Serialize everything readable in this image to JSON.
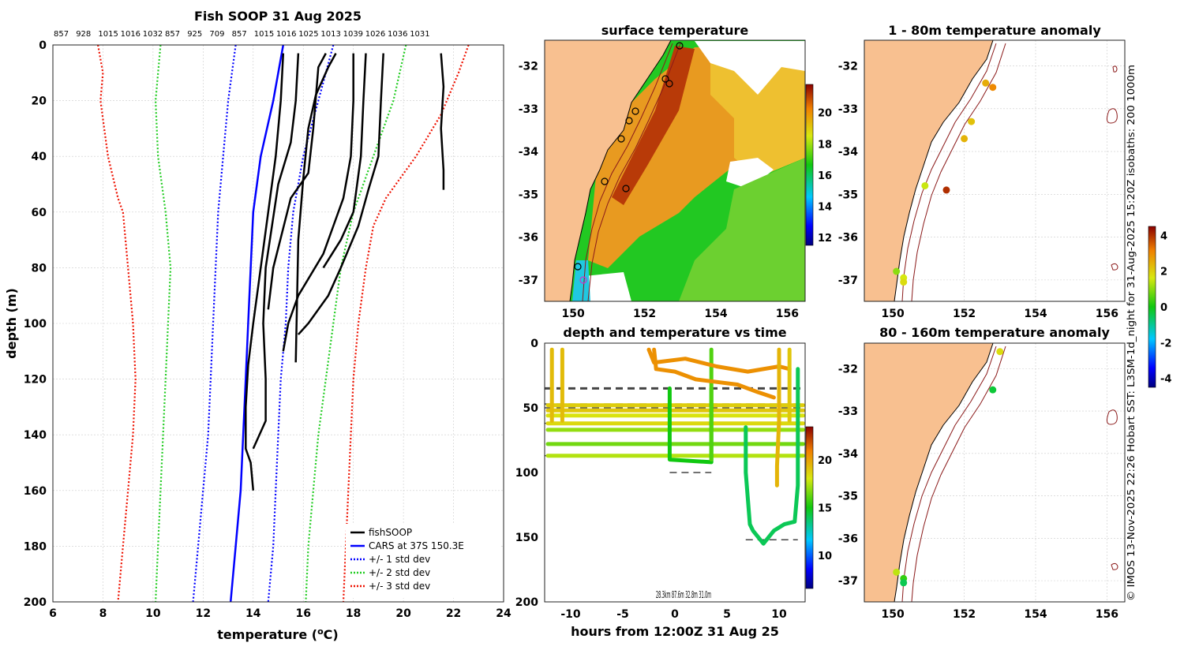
{
  "chart_data": [
    {
      "type": "line",
      "title": "Fish SOOP 31 Aug 2025",
      "xlabel": "temperature (",
      "xlabel_unit": "o",
      "xlabel_end": "C)",
      "ylabel": "depth (m)",
      "xlim": [
        6,
        24
      ],
      "ylim": [
        0,
        200
      ],
      "x_ticks": [
        6,
        8,
        10,
        12,
        14,
        16,
        18,
        20,
        22,
        24
      ],
      "y_ticks": [
        0,
        20,
        40,
        60,
        80,
        100,
        120,
        140,
        160,
        180,
        200
      ],
      "top_labels": [
        "857",
        "928",
        "1015",
        "1016",
        "1032",
        "857",
        "925",
        "709",
        "857",
        "1015",
        "1016",
        "1025",
        "1013",
        "1039",
        "1026",
        "1036",
        "1031"
      ],
      "legend": [
        {
          "label": "fishSOOP",
          "color": "#000000",
          "style": "solid"
        },
        {
          "label": "CARS at 37S 150.3E",
          "color": "#0000ff",
          "style": "solid"
        },
        {
          "label": "+/- 1 std dev",
          "color": "#0000ff",
          "style": "dotted"
        },
        {
          "label": "+/- 2 std dev",
          "color": "#22cc22",
          "style": "dotted"
        },
        {
          "label": "+/- 3 std dev",
          "color": "#ee1100",
          "style": "dotted"
        }
      ],
      "series": [
        {
          "name": "CARS",
          "color": "#0000ff",
          "style": "solid",
          "points": [
            [
              15.2,
              0
            ],
            [
              14.8,
              20
            ],
            [
              14.3,
              40
            ],
            [
              14.0,
              60
            ],
            [
              13.9,
              80
            ],
            [
              13.8,
              100
            ],
            [
              13.7,
              120
            ],
            [
              13.6,
              140
            ],
            [
              13.5,
              160
            ],
            [
              13.3,
              180
            ],
            [
              13.1,
              200
            ]
          ]
        },
        {
          "name": "-1 std",
          "color": "#0000ff",
          "style": "dotted",
          "points": [
            [
              13.3,
              0
            ],
            [
              13.0,
              20
            ],
            [
              12.8,
              40
            ],
            [
              12.6,
              60
            ],
            [
              12.5,
              80
            ],
            [
              12.4,
              100
            ],
            [
              12.3,
              120
            ],
            [
              12.2,
              140
            ],
            [
              12.0,
              160
            ],
            [
              11.8,
              180
            ],
            [
              11.6,
              200
            ]
          ]
        },
        {
          "name": "+1 std",
          "color": "#0000ff",
          "style": "dotted",
          "points": [
            [
              17.2,
              0
            ],
            [
              16.6,
              20
            ],
            [
              16.0,
              40
            ],
            [
              15.6,
              60
            ],
            [
              15.4,
              80
            ],
            [
              15.3,
              100
            ],
            [
              15.1,
              120
            ],
            [
              15.0,
              140
            ],
            [
              14.9,
              160
            ],
            [
              14.8,
              180
            ],
            [
              14.6,
              200
            ]
          ]
        },
        {
          "name": "-2 std",
          "color": "#22cc22",
          "style": "dotted",
          "points": [
            [
              10.3,
              0
            ],
            [
              10.1,
              20
            ],
            [
              10.2,
              40
            ],
            [
              10.5,
              60
            ],
            [
              10.7,
              80
            ],
            [
              10.6,
              100
            ],
            [
              10.5,
              120
            ],
            [
              10.4,
              140
            ],
            [
              10.3,
              160
            ],
            [
              10.2,
              180
            ],
            [
              10.1,
              200
            ]
          ]
        },
        {
          "name": "+2 std",
          "color": "#22cc22",
          "style": "dotted",
          "points": [
            [
              20.1,
              0
            ],
            [
              19.6,
              20
            ],
            [
              18.8,
              40
            ],
            [
              18.0,
              60
            ],
            [
              17.5,
              80
            ],
            [
              17.2,
              100
            ],
            [
              16.9,
              120
            ],
            [
              16.6,
              140
            ],
            [
              16.4,
              160
            ],
            [
              16.2,
              180
            ],
            [
              16.1,
              200
            ]
          ]
        },
        {
          "name": "-3 std",
          "color": "#ee1100",
          "style": "dotted",
          "points": [
            [
              7.8,
              0
            ],
            [
              8.0,
              10
            ],
            [
              7.9,
              20
            ],
            [
              8.2,
              40
            ],
            [
              8.6,
              55
            ],
            [
              8.8,
              60
            ],
            [
              9.0,
              80
            ],
            [
              9.2,
              100
            ],
            [
              9.3,
              120
            ],
            [
              9.2,
              140
            ],
            [
              9.0,
              160
            ],
            [
              8.8,
              180
            ],
            [
              8.6,
              200
            ]
          ]
        },
        {
          "name": "+3 std",
          "color": "#ee1100",
          "style": "dotted",
          "points": [
            [
              22.6,
              0
            ],
            [
              22.2,
              10
            ],
            [
              21.5,
              25
            ],
            [
              20.5,
              40
            ],
            [
              19.3,
              55
            ],
            [
              18.8,
              65
            ],
            [
              18.5,
              80
            ],
            [
              18.2,
              100
            ],
            [
              18.0,
              120
            ],
            [
              17.9,
              140
            ],
            [
              17.8,
              160
            ],
            [
              17.7,
              180
            ],
            [
              17.6,
              200
            ]
          ]
        },
        {
          "name": "fishSOOP 1",
          "color": "#000000",
          "style": "solid",
          "points": [
            [
              15.2,
              3
            ],
            [
              15.1,
              20
            ],
            [
              14.9,
              40
            ],
            [
              14.6,
              60
            ],
            [
              14.3,
              80
            ],
            [
              14.0,
              100
            ],
            [
              13.8,
              115
            ],
            [
              13.7,
              130
            ],
            [
              13.7,
              145
            ],
            [
              13.9,
              150
            ],
            [
              14.0,
              160
            ]
          ]
        },
        {
          "name": "fishSOOP 2",
          "color": "#000000",
          "style": "solid",
          "points": [
            [
              15.8,
              3
            ],
            [
              15.7,
              20
            ],
            [
              15.5,
              35
            ],
            [
              15.0,
              50
            ],
            [
              14.5,
              80
            ],
            [
              14.4,
              100
            ],
            [
              14.5,
              120
            ],
            [
              14.5,
              135
            ],
            [
              14.0,
              145
            ]
          ]
        },
        {
          "name": "fishSOOP 3",
          "color": "#000000",
          "style": "solid",
          "points": [
            [
              16.9,
              3
            ],
            [
              16.6,
              8
            ],
            [
              16.4,
              30
            ],
            [
              16.2,
              46
            ],
            [
              15.5,
              55
            ],
            [
              14.8,
              80
            ],
            [
              14.6,
              95
            ]
          ]
        },
        {
          "name": "fishSOOP 4",
          "color": "#000000",
          "style": "solid",
          "points": [
            [
              17.3,
              3
            ],
            [
              17.0,
              8
            ],
            [
              16.5,
              18
            ],
            [
              16.2,
              30
            ],
            [
              16.0,
              48
            ],
            [
              15.8,
              70
            ],
            [
              15.7,
              114
            ]
          ]
        },
        {
          "name": "fishSOOP 5",
          "color": "#000000",
          "style": "solid",
          "points": [
            [
              18.0,
              3
            ],
            [
              18.0,
              20
            ],
            [
              17.9,
              40
            ],
            [
              17.6,
              55
            ],
            [
              17.2,
              65
            ],
            [
              16.8,
              75
            ],
            [
              15.8,
              90
            ],
            [
              15.4,
              100
            ],
            [
              15.2,
              110
            ]
          ]
        },
        {
          "name": "fishSOOP 6",
          "color": "#000000",
          "style": "solid",
          "points": [
            [
              18.5,
              3
            ],
            [
              18.4,
              20
            ],
            [
              18.3,
              40
            ],
            [
              18.0,
              60
            ],
            [
              17.5,
              70
            ],
            [
              16.8,
              80
            ]
          ]
        },
        {
          "name": "fishSOOP 7",
          "color": "#000000",
          "style": "solid",
          "points": [
            [
              19.2,
              3
            ],
            [
              19.1,
              20
            ],
            [
              19.0,
              40
            ],
            [
              18.6,
              52
            ],
            [
              18.2,
              65
            ],
            [
              17.5,
              80
            ],
            [
              17.0,
              90
            ],
            [
              16.2,
              100
            ],
            [
              15.8,
              104
            ]
          ]
        },
        {
          "name": "fishSOOP 8",
          "color": "#000000",
          "style": "solid",
          "points": [
            [
              21.5,
              3
            ],
            [
              21.6,
              15
            ],
            [
              21.5,
              30
            ],
            [
              21.6,
              45
            ],
            [
              21.6,
              52
            ]
          ]
        }
      ]
    },
    {
      "type": "heatmap",
      "title": "surface temperature",
      "x_ticks": [
        150,
        152,
        154,
        156
      ],
      "y_ticks": [
        -32,
        -33,
        -34,
        -35,
        -36,
        -37
      ],
      "colorbar_ticks": [
        20,
        18,
        16,
        14,
        12
      ],
      "colorbar_range": [
        11.5,
        21.8
      ]
    },
    {
      "type": "line",
      "title": "depth and temperature vs time",
      "xlabel": "hours from 12:00Z 31 Aug 25",
      "xlim": [
        -12.5,
        12.5
      ],
      "ylim": [
        0,
        200
      ],
      "x_ticks": [
        -10,
        -5,
        0,
        5,
        10
      ],
      "y_ticks": [
        0,
        50,
        100,
        150,
        200
      ],
      "annotation": "28.3km 87.6m 32.8m 31.0m",
      "colorbar_ticks": [
        20,
        15,
        10
      ],
      "colorbar_range": [
        6.5,
        23.5
      ],
      "reference_depths": [
        35,
        47,
        50,
        62,
        87,
        100,
        152
      ]
    },
    {
      "type": "scatter",
      "title": "1 - 80m temperature anomaly",
      "x_ticks": [
        150,
        152,
        154,
        156
      ],
      "y_ticks": [
        -32,
        -33,
        -34,
        -35,
        -36,
        -37
      ],
      "points": [
        [
          152.6,
          -32.4
        ],
        [
          152.8,
          -32.5
        ],
        [
          152.2,
          -33.3
        ],
        [
          152.0,
          -33.7
        ],
        [
          150.9,
          -34.8
        ],
        [
          151.5,
          -34.9
        ],
        [
          150.1,
          -36.8
        ],
        [
          150.3,
          -36.95
        ],
        [
          150.3,
          -37.05
        ]
      ],
      "point_anomaly": [
        2.5,
        3.0,
        2.2,
        2.4,
        1.5,
        4.0,
        1.0,
        1.6,
        1.8
      ]
    },
    {
      "type": "scatter",
      "title": "80 - 160m temperature anomaly",
      "x_ticks": [
        150,
        152,
        154,
        156
      ],
      "y_ticks": [
        -32,
        -33,
        -34,
        -35,
        -36,
        -37
      ],
      "points": [
        [
          153.0,
          -31.6
        ],
        [
          152.8,
          -32.5
        ],
        [
          150.1,
          -36.8
        ],
        [
          150.3,
          -36.95
        ],
        [
          150.3,
          -37.05
        ]
      ],
      "point_anomaly": [
        1.8,
        -0.3,
        1.4,
        0.3,
        -0.5
      ]
    },
    {
      "type": "colorbar",
      "ticks": [
        4,
        2,
        0,
        -2,
        -4
      ],
      "range": [
        -4.5,
        4.5
      ]
    }
  ],
  "side_text": "© IMOS 13-Nov-2025 22:26 Hobart SST: L3SM-1d_night for 31-Aug-2025 15:20Z isobaths: 200  1000m"
}
